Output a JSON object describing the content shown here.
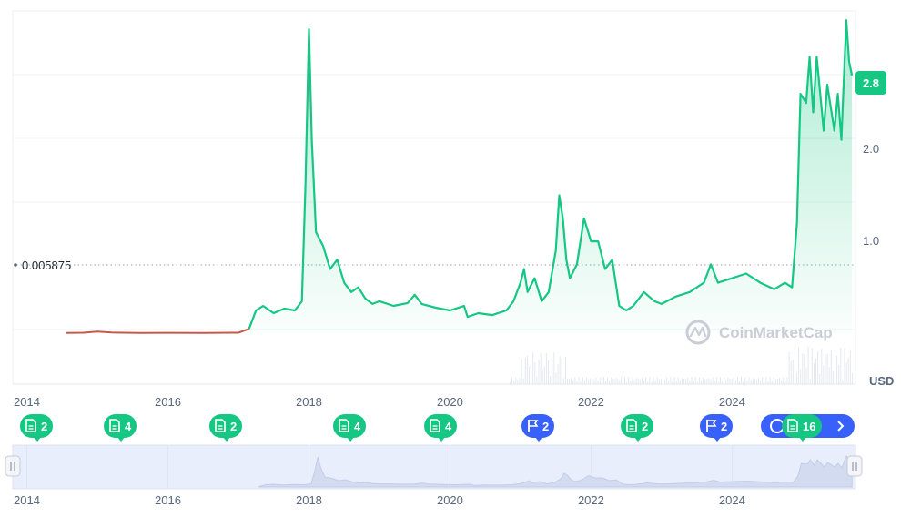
{
  "chart_data": {
    "type": "line",
    "currency_label": "USD",
    "x_ticks": [
      "2014",
      "2016",
      "2018",
      "2020",
      "2022",
      "2024"
    ],
    "y_ticks": [
      "1.0",
      "2.0"
    ],
    "current_price_label": "2.8",
    "baseline_value_label": "0.005875",
    "x_range": [
      2013.8,
      2025.75
    ],
    "y_range": [
      -0.55,
      3.5
    ],
    "series": [
      {
        "points": [
          [
            2014.55,
            0.006
          ],
          [
            2014.8,
            0.008
          ],
          [
            2015.0,
            0.02
          ],
          [
            2015.2,
            0.01
          ],
          [
            2015.6,
            0.006
          ],
          [
            2016.0,
            0.007
          ],
          [
            2016.5,
            0.006
          ],
          [
            2017.0,
            0.008
          ],
          [
            2017.15,
            0.05
          ],
          [
            2017.25,
            0.25
          ],
          [
            2017.35,
            0.3
          ],
          [
            2017.5,
            0.22
          ],
          [
            2017.65,
            0.27
          ],
          [
            2017.8,
            0.25
          ],
          [
            2017.9,
            0.35
          ],
          [
            2017.95,
            1.6
          ],
          [
            2018.0,
            3.3
          ],
          [
            2018.04,
            2.1
          ],
          [
            2018.1,
            1.1
          ],
          [
            2018.2,
            0.95
          ],
          [
            2018.3,
            0.7
          ],
          [
            2018.4,
            0.8
          ],
          [
            2018.5,
            0.55
          ],
          [
            2018.6,
            0.45
          ],
          [
            2018.7,
            0.5
          ],
          [
            2018.8,
            0.38
          ],
          [
            2018.9,
            0.32
          ],
          [
            2019.0,
            0.35
          ],
          [
            2019.2,
            0.3
          ],
          [
            2019.4,
            0.33
          ],
          [
            2019.5,
            0.42
          ],
          [
            2019.6,
            0.32
          ],
          [
            2019.8,
            0.28
          ],
          [
            2020.0,
            0.25
          ],
          [
            2020.2,
            0.3
          ],
          [
            2020.25,
            0.18
          ],
          [
            2020.4,
            0.22
          ],
          [
            2020.6,
            0.2
          ],
          [
            2020.8,
            0.25
          ],
          [
            2020.9,
            0.35
          ],
          [
            2021.0,
            0.55
          ],
          [
            2021.05,
            0.7
          ],
          [
            2021.1,
            0.45
          ],
          [
            2021.2,
            0.6
          ],
          [
            2021.3,
            0.35
          ],
          [
            2021.4,
            0.45
          ],
          [
            2021.5,
            0.9
          ],
          [
            2021.55,
            1.5
          ],
          [
            2021.6,
            1.25
          ],
          [
            2021.65,
            0.8
          ],
          [
            2021.7,
            0.6
          ],
          [
            2021.8,
            0.75
          ],
          [
            2021.9,
            1.25
          ],
          [
            2022.0,
            1.0
          ],
          [
            2022.1,
            1.0
          ],
          [
            2022.2,
            0.7
          ],
          [
            2022.3,
            0.8
          ],
          [
            2022.4,
            0.3
          ],
          [
            2022.5,
            0.25
          ],
          [
            2022.6,
            0.3
          ],
          [
            2022.75,
            0.45
          ],
          [
            2022.9,
            0.35
          ],
          [
            2023.0,
            0.32
          ],
          [
            2023.2,
            0.4
          ],
          [
            2023.4,
            0.45
          ],
          [
            2023.6,
            0.55
          ],
          [
            2023.7,
            0.75
          ],
          [
            2023.8,
            0.55
          ],
          [
            2024.0,
            0.6
          ],
          [
            2024.2,
            0.65
          ],
          [
            2024.4,
            0.55
          ],
          [
            2024.6,
            0.48
          ],
          [
            2024.75,
            0.55
          ],
          [
            2024.85,
            0.5
          ],
          [
            2024.92,
            1.2
          ],
          [
            2024.97,
            2.6
          ],
          [
            2025.05,
            2.5
          ],
          [
            2025.1,
            3.0
          ],
          [
            2025.15,
            2.4
          ],
          [
            2025.2,
            3.0
          ],
          [
            2025.3,
            2.2
          ],
          [
            2025.35,
            2.7
          ],
          [
            2025.45,
            2.2
          ],
          [
            2025.5,
            2.6
          ],
          [
            2025.55,
            2.1
          ],
          [
            2025.62,
            3.4
          ],
          [
            2025.66,
            2.95
          ],
          [
            2025.7,
            2.8
          ]
        ]
      }
    ]
  },
  "events": [
    {
      "icon": "document-icon",
      "count": "2",
      "color": "#16c784"
    },
    {
      "icon": "document-icon",
      "count": "4",
      "color": "#16c784"
    },
    {
      "icon": "document-icon",
      "count": "2",
      "color": "#16c784"
    },
    {
      "icon": "document-icon",
      "count": "4",
      "color": "#16c784"
    },
    {
      "icon": "document-icon",
      "count": "4",
      "color": "#16c784"
    },
    {
      "icon": "flag-icon",
      "count": "2",
      "color": "#3861fb"
    },
    {
      "icon": "document-icon",
      "count": "2",
      "color": "#16c784"
    },
    {
      "icon": "flag-icon",
      "count": "2",
      "color": "#3861fb"
    },
    {
      "icon": "document-icon",
      "count": "16",
      "color": "#16c784"
    }
  ],
  "brand": {
    "watermark": "CoinMarketCap"
  },
  "colors": {
    "line": "#16c784",
    "baseline_line": "#c45a4a",
    "event_blue": "#3861fb"
  }
}
